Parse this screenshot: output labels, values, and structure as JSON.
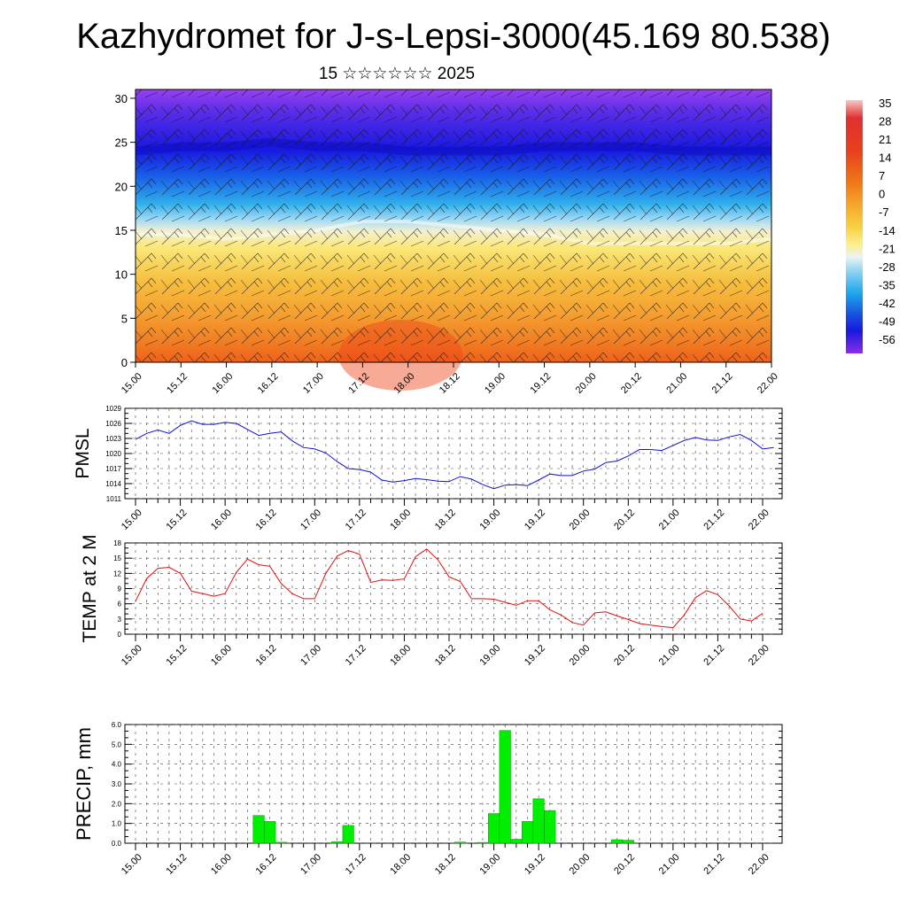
{
  "title": "Kazhydromet for J-s-Lepsi-3000(45.169 80.538)",
  "subtitle": "15 ☆☆☆☆☆☆ 2025",
  "time_ticks": [
    "15.00",
    "15.12",
    "16.00",
    "16.12",
    "17.00",
    "17.12",
    "18.00",
    "18.12",
    "19.00",
    "19.12",
    "20.00",
    "20.12",
    "21.00",
    "21.12",
    "22.00"
  ],
  "colors": {
    "pmsl_line": "#1010d0",
    "temp_line": "#e01010",
    "precip_bar": "#00ee00",
    "precip_bar_edge": "#009900"
  },
  "chart_data": [
    {
      "type": "heatmap",
      "title": "",
      "xlabel": "",
      "ylabel": "",
      "ylim": [
        0,
        31
      ],
      "y_ticks": [
        0,
        5,
        10,
        15,
        20,
        25,
        30
      ],
      "colorbar_labels": [
        35,
        28,
        21,
        14,
        7,
        0,
        -7,
        -14,
        -21,
        -28,
        -35,
        -42,
        -49,
        -56
      ],
      "freezing_level_profile": {
        "x": [
          "15.00",
          "15.12",
          "16.00",
          "16.12",
          "17.00",
          "17.12",
          "18.00",
          "18.12",
          "19.00",
          "19.12",
          "20.00",
          "20.12",
          "21.00",
          "21.12",
          "22.00"
        ],
        "values": [
          14.5,
          14.5,
          14,
          14.5,
          15,
          16,
          16,
          15.5,
          15,
          14.5,
          13.5,
          13.5,
          13.5,
          13.5,
          14
        ]
      },
      "tropopause_profile": {
        "x": [
          "15.00",
          "15.12",
          "16.00",
          "16.12",
          "17.00",
          "17.12",
          "18.00",
          "18.12",
          "19.00",
          "19.12",
          "20.00",
          "20.12",
          "21.00",
          "21.12",
          "22.00"
        ],
        "values": [
          24,
          24.5,
          24.5,
          25,
          24.5,
          24.5,
          24,
          24,
          24,
          24.5,
          24.5,
          24.5,
          24,
          24,
          24
        ]
      }
    },
    {
      "type": "line",
      "ylabel": "PMSL",
      "ylim": [
        1011,
        1029
      ],
      "y_ticks": [
        1011,
        1014,
        1017,
        1020,
        1023,
        1026,
        1029
      ],
      "x_step_hours": 3,
      "series": [
        {
          "values": [
            1022.8,
            1024,
            1024.7,
            1024,
            1025.6,
            1026.5,
            1025.8,
            1025.8,
            1026.2,
            1026,
            1024.8,
            1023.6,
            1024,
            1024.3,
            1022.5,
            1021.2,
            1020.9,
            1020.1,
            1018.4,
            1017,
            1016.8,
            1016.3,
            1014.7,
            1014.3,
            1014.6,
            1015,
            1014.8,
            1014.5,
            1014.4,
            1015.4,
            1014.9,
            1013.8,
            1013,
            1013.7,
            1013.8,
            1013.6,
            1014.7,
            1015.9,
            1015.6,
            1015.6,
            1016.5,
            1016.9,
            1018.2,
            1018.5,
            1019.5,
            1020.8,
            1020.8,
            1020.6,
            1021.6,
            1022.6,
            1023.2,
            1022.7,
            1022.6,
            1023.3,
            1023.8,
            1022.6,
            1020.9,
            1021.2
          ]
        }
      ]
    },
    {
      "type": "line",
      "ylabel": "TEMP at 2 M",
      "ylim": [
        0,
        18
      ],
      "y_ticks": [
        0,
        3,
        6,
        9,
        12,
        15,
        18
      ],
      "x_step_hours": 3,
      "series": [
        {
          "values": [
            6.5,
            11,
            13,
            13.2,
            12,
            8.5,
            8,
            7.5,
            8,
            12.2,
            14.8,
            13.7,
            13.4,
            10,
            8,
            7,
            7,
            12,
            15.4,
            16.5,
            15.8,
            10.2,
            10.7,
            10.6,
            10.9,
            15.3,
            16.8,
            14.7,
            11.3,
            10.4,
            7,
            7,
            6.9,
            6.3,
            5.7,
            6.6,
            6.6,
            4.8,
            3.8,
            2.3,
            1.8,
            4.2,
            4.4,
            3.6,
            2.9,
            2.1,
            1.8,
            1.5,
            1.3,
            3.8,
            7.2,
            8.6,
            7.8,
            5.6,
            3,
            2.6,
            4.1
          ]
        }
      ]
    },
    {
      "type": "bar",
      "ylabel": "PRECIP, mm",
      "ylim": [
        0,
        6
      ],
      "y_tick_labels": [
        "0.0",
        "1.0",
        "2.0",
        "3.0",
        "4.0",
        "5.0",
        "6.0"
      ],
      "x_step_hours": 3,
      "bars": [
        {
          "x": "16.09",
          "value": 1.4
        },
        {
          "x": "16.12",
          "value": 1.1
        },
        {
          "x": "16.15",
          "value": 0.05
        },
        {
          "x": "17.06",
          "value": 0.07
        },
        {
          "x": "17.09",
          "value": 0.9
        },
        {
          "x": "18.15",
          "value": 0.06
        },
        {
          "x": "18.21",
          "value": 0.04
        },
        {
          "x": "19.00",
          "value": 1.5
        },
        {
          "x": "19.03",
          "value": 5.7
        },
        {
          "x": "19.06",
          "value": 0.2
        },
        {
          "x": "19.09",
          "value": 1.1
        },
        {
          "x": "19.12",
          "value": 2.25
        },
        {
          "x": "19.15",
          "value": 1.65
        },
        {
          "x": "20.09",
          "value": 0.18
        },
        {
          "x": "20.12",
          "value": 0.15
        }
      ]
    }
  ]
}
